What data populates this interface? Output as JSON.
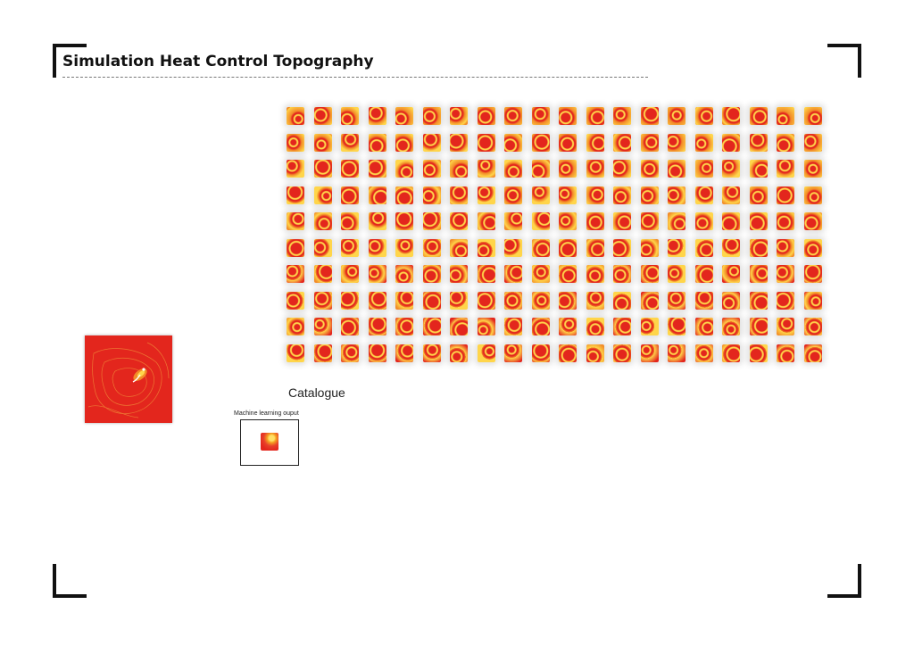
{
  "title": "Simulation Heat Control Topography",
  "catalogue_label": "Catalogue",
  "ml_output_label": "Machine learning ouput",
  "colors": {
    "heat_red": "#e3261d",
    "heat_orange": "#f28c28",
    "heat_yellow": "#ffd54a",
    "frame": "#111111"
  },
  "catalogue_grid": {
    "rows": 10,
    "columns": 20
  }
}
